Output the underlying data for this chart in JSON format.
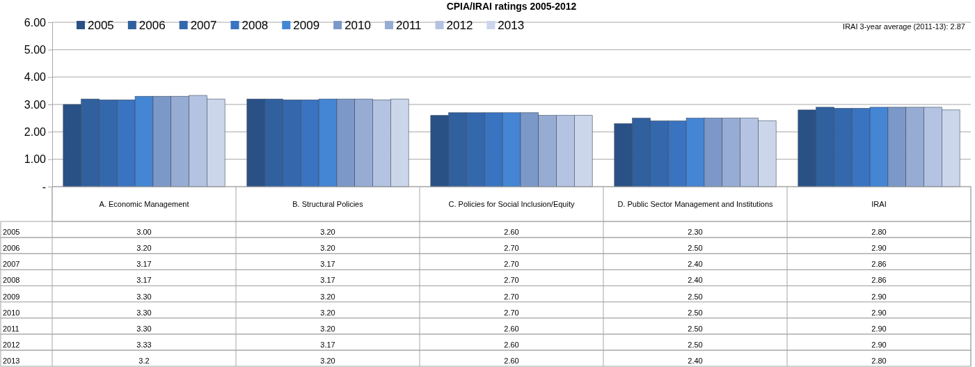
{
  "chart_data": {
    "type": "bar",
    "title": "CPIA/IRAI ratings 2005-2012",
    "categories": [
      "A. Economic Management",
      "B. Structural Policies",
      "C. Policies for Social Inclusion/Equity",
      "D. Public Sector Management and Institutions",
      "IRAI"
    ],
    "series": [
      {
        "name": "2005",
        "color": "#2a5186",
        "values": [
          3.0,
          3.2,
          2.6,
          2.3,
          2.8
        ],
        "value_labels": [
          "3.00",
          "3.20",
          "2.60",
          "2.30",
          "2.80"
        ]
      },
      {
        "name": "2006",
        "color": "#30609e",
        "values": [
          3.2,
          3.2,
          2.7,
          2.5,
          2.9
        ],
        "value_labels": [
          "3.20",
          "3.20",
          "2.70",
          "2.50",
          "2.90"
        ]
      },
      {
        "name": "2007",
        "color": "#3468ad",
        "values": [
          3.17,
          3.17,
          2.7,
          2.4,
          2.86
        ],
        "value_labels": [
          "3.17",
          "3.17",
          "2.70",
          "2.40",
          "2.86"
        ]
      },
      {
        "name": "2008",
        "color": "#3a73c0",
        "values": [
          3.17,
          3.17,
          2.7,
          2.4,
          2.86
        ],
        "value_labels": [
          "3.17",
          "3.17",
          "2.70",
          "2.40",
          "2.86"
        ]
      },
      {
        "name": "2009",
        "color": "#4485d4",
        "values": [
          3.3,
          3.2,
          2.7,
          2.5,
          2.9
        ],
        "value_labels": [
          "3.30",
          "3.20",
          "2.70",
          "2.50",
          "2.90"
        ]
      },
      {
        "name": "2010",
        "color": "#7b98c8",
        "values": [
          3.3,
          3.2,
          2.7,
          2.5,
          2.9
        ],
        "value_labels": [
          "3.30",
          "3.20",
          "2.70",
          "2.50",
          "2.90"
        ]
      },
      {
        "name": "2011",
        "color": "#97acd3",
        "values": [
          3.3,
          3.2,
          2.6,
          2.5,
          2.9
        ],
        "value_labels": [
          "3.30",
          "3.20",
          "2.60",
          "2.50",
          "2.90"
        ]
      },
      {
        "name": "2012",
        "color": "#b4c3e1",
        "values": [
          3.33,
          3.17,
          2.6,
          2.5,
          2.9
        ],
        "value_labels": [
          "3.33",
          "3.17",
          "2.60",
          "2.50",
          "2.90"
        ]
      },
      {
        "name": "2013",
        "color": "#ccd6ea",
        "values": [
          3.2,
          3.2,
          2.6,
          2.4,
          2.8
        ],
        "value_labels": [
          "3.2",
          "3.20",
          "2.60",
          "2.40",
          "2.80"
        ]
      }
    ],
    "ylim": [
      0,
      6
    ],
    "yticks": [
      {
        "value": 0,
        "label": "-"
      },
      {
        "value": 1,
        "label": "1.00"
      },
      {
        "value": 2,
        "label": "2.00"
      },
      {
        "value": 3,
        "label": "3.00"
      },
      {
        "value": 4,
        "label": "4.00"
      },
      {
        "value": 5,
        "label": "5.00"
      },
      {
        "value": 6,
        "label": "6.00"
      }
    ],
    "grid": "y",
    "legend": "top left",
    "annotations": [
      "IRAI 3-year average (2011-13):  2.87"
    ]
  }
}
